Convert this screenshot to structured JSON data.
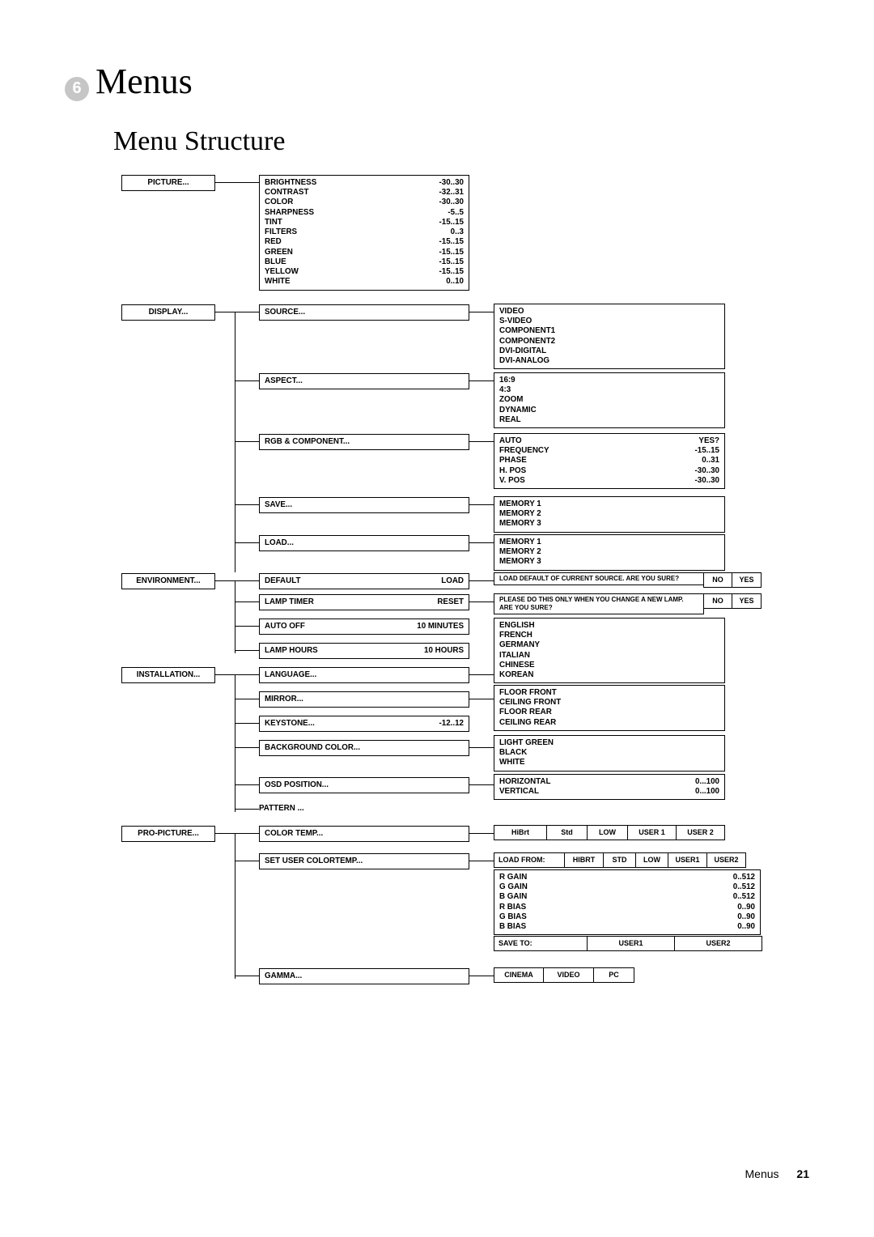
{
  "chapter": {
    "num": "6",
    "title": "Menus"
  },
  "section": {
    "title": "Menu Structure"
  },
  "footer": {
    "label": "Menus",
    "page": "21"
  },
  "roots": {
    "picture": "PICTURE...",
    "display": "DISPLAY...",
    "environment": "ENVIRONMENT...",
    "installation": "INSTALLATION...",
    "propicture": "PRO-PICTURE..."
  },
  "picture_params": [
    [
      "BRIGHTNESS",
      "-30..30"
    ],
    [
      "CONTRAST",
      "-32..31"
    ],
    [
      "COLOR",
      "-30..30"
    ],
    [
      "SHARPNESS",
      "-5..5"
    ],
    [
      "TINT",
      "-15..15"
    ],
    [
      "FILTERS",
      "0..3"
    ],
    [
      "RED",
      "-15..15"
    ],
    [
      "GREEN",
      "-15..15"
    ],
    [
      "BLUE",
      "-15..15"
    ],
    [
      "YELLOW",
      "-15..15"
    ],
    [
      "WHITE",
      "0..10"
    ]
  ],
  "display": {
    "source": "SOURCE...",
    "aspect": "ASPECT...",
    "rgb": "RGB & COMPONENT...",
    "save": "SAVE...",
    "load": "LOAD..."
  },
  "source_opts": [
    "VIDEO",
    "S-VIDEO",
    "COMPONENT1",
    "COMPONENT2",
    "DVI-DIGITAL",
    "DVI-ANALOG"
  ],
  "aspect_opts": [
    "16:9",
    "4:3",
    "ZOOM",
    "DYNAMIC",
    "REAL"
  ],
  "rgb_opts": [
    [
      "AUTO",
      "YES?"
    ],
    [
      "FREQUENCY",
      "-15..15"
    ],
    [
      "PHASE",
      "0..31"
    ],
    [
      "H. POS",
      "-30..30"
    ],
    [
      "V. POS",
      "-30..30"
    ]
  ],
  "mem_opts": [
    "MEMORY 1",
    "MEMORY 2",
    "MEMORY 3"
  ],
  "env": {
    "default": [
      "DEFAULT",
      "LOAD"
    ],
    "lamptimer": [
      "LAMP TIMER",
      "RESET"
    ],
    "autooff": [
      "AUTO OFF",
      "10 MINUTES"
    ],
    "lamphours": [
      "LAMP HOURS",
      "10 HOURS"
    ]
  },
  "env_default_msg": "LOAD DEFAULT OF CURRENT SOURCE. ARE YOU SURE?",
  "env_lamp_msg": "PLEASE DO THIS ONLY WHEN YOU CHANGE A NEW LAMP.    ARE YOU SURE?",
  "noyes": [
    "NO",
    "YES"
  ],
  "install": {
    "language": "LANGUAGE...",
    "mirror": "MIRROR...",
    "keystone": [
      "KEYSTONE...",
      "-12..12"
    ],
    "bgcolor": "BACKGROUND COLOR...",
    "osd": "OSD POSITION...",
    "pattern": "PATTERN   ..."
  },
  "lang_opts": [
    "ENGLISH",
    "FRENCH",
    "GERMANY",
    "ITALIAN",
    "CHINESE",
    "KOREAN"
  ],
  "mirror_opts": [
    "FLOOR FRONT",
    "CEILING FRONT",
    "FLOOR REAR",
    "CEILING REAR"
  ],
  "bg_opts": [
    "LIGHT GREEN",
    "BLACK",
    "WHITE"
  ],
  "osd_opts": [
    [
      "HORIZONTAL",
      "0...100"
    ],
    [
      "VERTICAL",
      "0...100"
    ]
  ],
  "pro": {
    "colortemp": "COLOR TEMP...",
    "setuser": "SET USER COLORTEMP...",
    "gamma": "GAMMA..."
  },
  "colortemp_opts": [
    "HiBrt",
    "Std",
    "LOW",
    "USER 1",
    "USER 2"
  ],
  "loadfrom_label": "LOAD FROM:",
  "loadfrom_opts": [
    "HIBRT",
    "STD",
    "LOW",
    "USER1",
    "USER2"
  ],
  "gainbias": [
    [
      "R GAIN",
      "0..512"
    ],
    [
      "G GAIN",
      "0..512"
    ],
    [
      "B GAIN",
      "0..512"
    ],
    [
      "R BIAS",
      "0..90"
    ],
    [
      "G BIAS",
      "0..90"
    ],
    [
      "B BIAS",
      "0..90"
    ]
  ],
  "saveto_label": "SAVE TO:",
  "saveto_opts": [
    "USER1",
    "USER2"
  ],
  "gamma_opts": [
    "CINEMA",
    "VIDEO",
    "PC"
  ]
}
